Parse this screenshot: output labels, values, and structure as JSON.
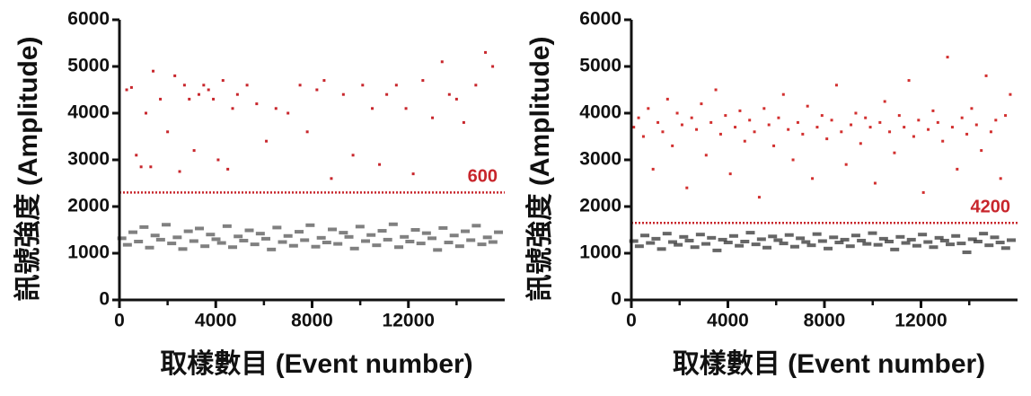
{
  "chart_data": [
    {
      "type": "scatter",
      "ylabel": "訊號強度 (Amplitude)",
      "xlabel": "取樣數目 (Event number)",
      "xlim": [
        0,
        16000
      ],
      "ylim": [
        0,
        6000
      ],
      "xticks": [
        0,
        4000,
        8000,
        12000
      ],
      "xminorticks": [
        2000,
        6000,
        10000,
        14000
      ],
      "yticks": [
        0,
        1000,
        2000,
        3000,
        4000,
        5000,
        6000
      ],
      "threshold": 2300,
      "threshold_color": "#c8262c",
      "annotation": "600",
      "series": [
        {
          "color": "#555555",
          "x": [
            100,
            330,
            560,
            790,
            1020,
            1250,
            1480,
            1710,
            1940,
            2170,
            2400,
            2630,
            2860,
            3090,
            3320,
            3550,
            3780,
            4010,
            4240,
            4470,
            4700,
            4930,
            5160,
            5390,
            5620,
            5850,
            6080,
            6310,
            6540,
            6770,
            7000,
            7230,
            7460,
            7690,
            7920,
            8150,
            8380,
            8610,
            8840,
            9070,
            9300,
            9530,
            9760,
            9990,
            10220,
            10450,
            10680,
            10910,
            11140,
            11370,
            11600,
            11830,
            12060,
            12290,
            12520,
            12750,
            12980,
            13210,
            13440,
            13670,
            13900,
            14130,
            14360,
            14590,
            14820,
            15050,
            15280,
            15510,
            15740
          ],
          "values": [
            1320,
            1180,
            1450,
            1250,
            1560,
            1120,
            1380,
            1290,
            1610,
            1210,
            1340,
            1090,
            1470,
            1260,
            1530,
            1150,
            1400,
            1300,
            1220,
            1580,
            1130,
            1360,
            1270,
            1490,
            1190,
            1420,
            1310,
            1080,
            1550,
            1240,
            1370,
            1160,
            1460,
            1280,
            1600,
            1140,
            1330,
            1230,
            1510,
            1200,
            1440,
            1350,
            1100,
            1570,
            1260,
            1390,
            1170,
            1480,
            1290,
            1620,
            1130,
            1350,
            1250,
            1500,
            1210,
            1430,
            1320,
            1070,
            1540,
            1230,
            1380,
            1150,
            1470,
            1280,
            1590,
            1190,
            1340,
            1240,
            1450
          ]
        },
        {
          "color": "#c8262c",
          "x": [
            300,
            500,
            700,
            900,
            1100,
            1300,
            1400,
            1700,
            2000,
            2300,
            2500,
            2700,
            2900,
            3100,
            3300,
            3500,
            3700,
            3900,
            4100,
            4300,
            4500,
            4700,
            4900,
            5300,
            5700,
            6100,
            6500,
            7000,
            7500,
            7800,
            8200,
            8500,
            8800,
            9300,
            9700,
            10100,
            10500,
            10800,
            11100,
            11500,
            11900,
            12200,
            12600,
            13000,
            13400,
            13700,
            14000,
            14300,
            14800,
            15200,
            15500
          ],
          "values": [
            4500,
            4550,
            3100,
            2850,
            4000,
            2850,
            4900,
            4300,
            3600,
            4800,
            2750,
            4600,
            4300,
            3200,
            4400,
            4600,
            4500,
            4300,
            3000,
            4700,
            2800,
            4100,
            4400,
            4600,
            4200,
            3400,
            4100,
            4000,
            4600,
            3600,
            4500,
            4700,
            2600,
            4400,
            3100,
            4600,
            4100,
            2900,
            4400,
            4600,
            4100,
            2700,
            4700,
            3900,
            5100,
            4400,
            4300,
            3800,
            4600,
            5300,
            5000
          ]
        }
      ]
    },
    {
      "type": "scatter",
      "ylabel": "訊號強度 (Amplitude)",
      "xlabel": "取樣數目 (Event number)",
      "xlim": [
        0,
        16000
      ],
      "ylim": [
        0,
        6000
      ],
      "xticks": [
        0,
        4000,
        8000,
        12000
      ],
      "xminorticks": [
        2000,
        6000,
        10000,
        14000
      ],
      "yticks": [
        0,
        1000,
        2000,
        3000,
        4000,
        5000,
        6000
      ],
      "threshold": 1650,
      "threshold_color": "#c8262c",
      "annotation": "4200",
      "series": [
        {
          "color": "#333333",
          "x": [
            100,
            330,
            560,
            790,
            1020,
            1250,
            1480,
            1710,
            1940,
            2170,
            2400,
            2630,
            2860,
            3090,
            3320,
            3550,
            3780,
            4010,
            4240,
            4470,
            4700,
            4930,
            5160,
            5390,
            5620,
            5850,
            6080,
            6310,
            6540,
            6770,
            7000,
            7230,
            7460,
            7690,
            7920,
            8150,
            8380,
            8610,
            8840,
            9070,
            9300,
            9530,
            9760,
            9990,
            10220,
            10450,
            10680,
            10910,
            11140,
            11370,
            11600,
            11830,
            12060,
            12290,
            12520,
            12750,
            12980,
            13210,
            13440,
            13670,
            13900,
            14130,
            14360,
            14590,
            14820,
            15050,
            15280,
            15510,
            15740
          ],
          "values": [
            1260,
            1150,
            1380,
            1220,
            1310,
            1090,
            1420,
            1240,
            1180,
            1350,
            1270,
            1130,
            1400,
            1200,
            1330,
            1060,
            1290,
            1230,
            1370,
            1160,
            1250,
            1440,
            1190,
            1300,
            1120,
            1360,
            1280,
            1210,
            1390,
            1140,
            1320,
            1240,
            1170,
            1410,
            1260,
            1100,
            1340,
            1230,
            1290,
            1150,
            1380,
            1270,
            1200,
            1430,
            1180,
            1310,
            1250,
            1080,
            1350,
            1220,
            1290,
            1160,
            1400,
            1240,
            1130,
            1330,
            1270,
            1190,
            1370,
            1210,
            1020,
            1300,
            1250,
            1420,
            1170,
            1340,
            1230,
            1110,
            1280
          ]
        },
        {
          "color": "#d2302f",
          "x": [
            100,
            300,
            500,
            700,
            900,
            1100,
            1300,
            1500,
            1700,
            1900,
            2100,
            2300,
            2500,
            2700,
            2900,
            3100,
            3300,
            3500,
            3700,
            3900,
            4100,
            4300,
            4500,
            4700,
            4900,
            5100,
            5300,
            5500,
            5700,
            5900,
            6100,
            6300,
            6500,
            6700,
            6900,
            7100,
            7300,
            7500,
            7700,
            7900,
            8100,
            8300,
            8500,
            8700,
            8900,
            9100,
            9300,
            9500,
            9700,
            9900,
            10100,
            10300,
            10500,
            10700,
            10900,
            11100,
            11300,
            11500,
            11700,
            11900,
            12100,
            12300,
            12500,
            12700,
            12900,
            13100,
            13300,
            13500,
            13700,
            13900,
            14100,
            14300,
            14500,
            14700,
            14900,
            15100,
            15300,
            15500,
            15700
          ],
          "values": [
            3700,
            3900,
            3500,
            4100,
            2800,
            3800,
            3600,
            4300,
            3300,
            4000,
            3750,
            2400,
            3900,
            3650,
            4200,
            3100,
            3800,
            4500,
            3550,
            3950,
            2700,
            3700,
            4050,
            3400,
            3850,
            3600,
            2200,
            4100,
            3750,
            3300,
            3900,
            4400,
            3650,
            3000,
            3800,
            3550,
            4150,
            2600,
            3700,
            3950,
            3450,
            3850,
            4600,
            3600,
            2900,
            3750,
            4000,
            3350,
            3900,
            3700,
            2500,
            3800,
            4250,
            3600,
            3150,
            3950,
            3700,
            4700,
            3500,
            3850,
            2300,
            3650,
            4050,
            3800,
            3400,
            5200,
            3700,
            2800,
            3900,
            3550,
            4100,
            3750,
            3200,
            4800,
            3600,
            3850,
            2600,
            3950,
            4400
          ]
        }
      ]
    }
  ]
}
